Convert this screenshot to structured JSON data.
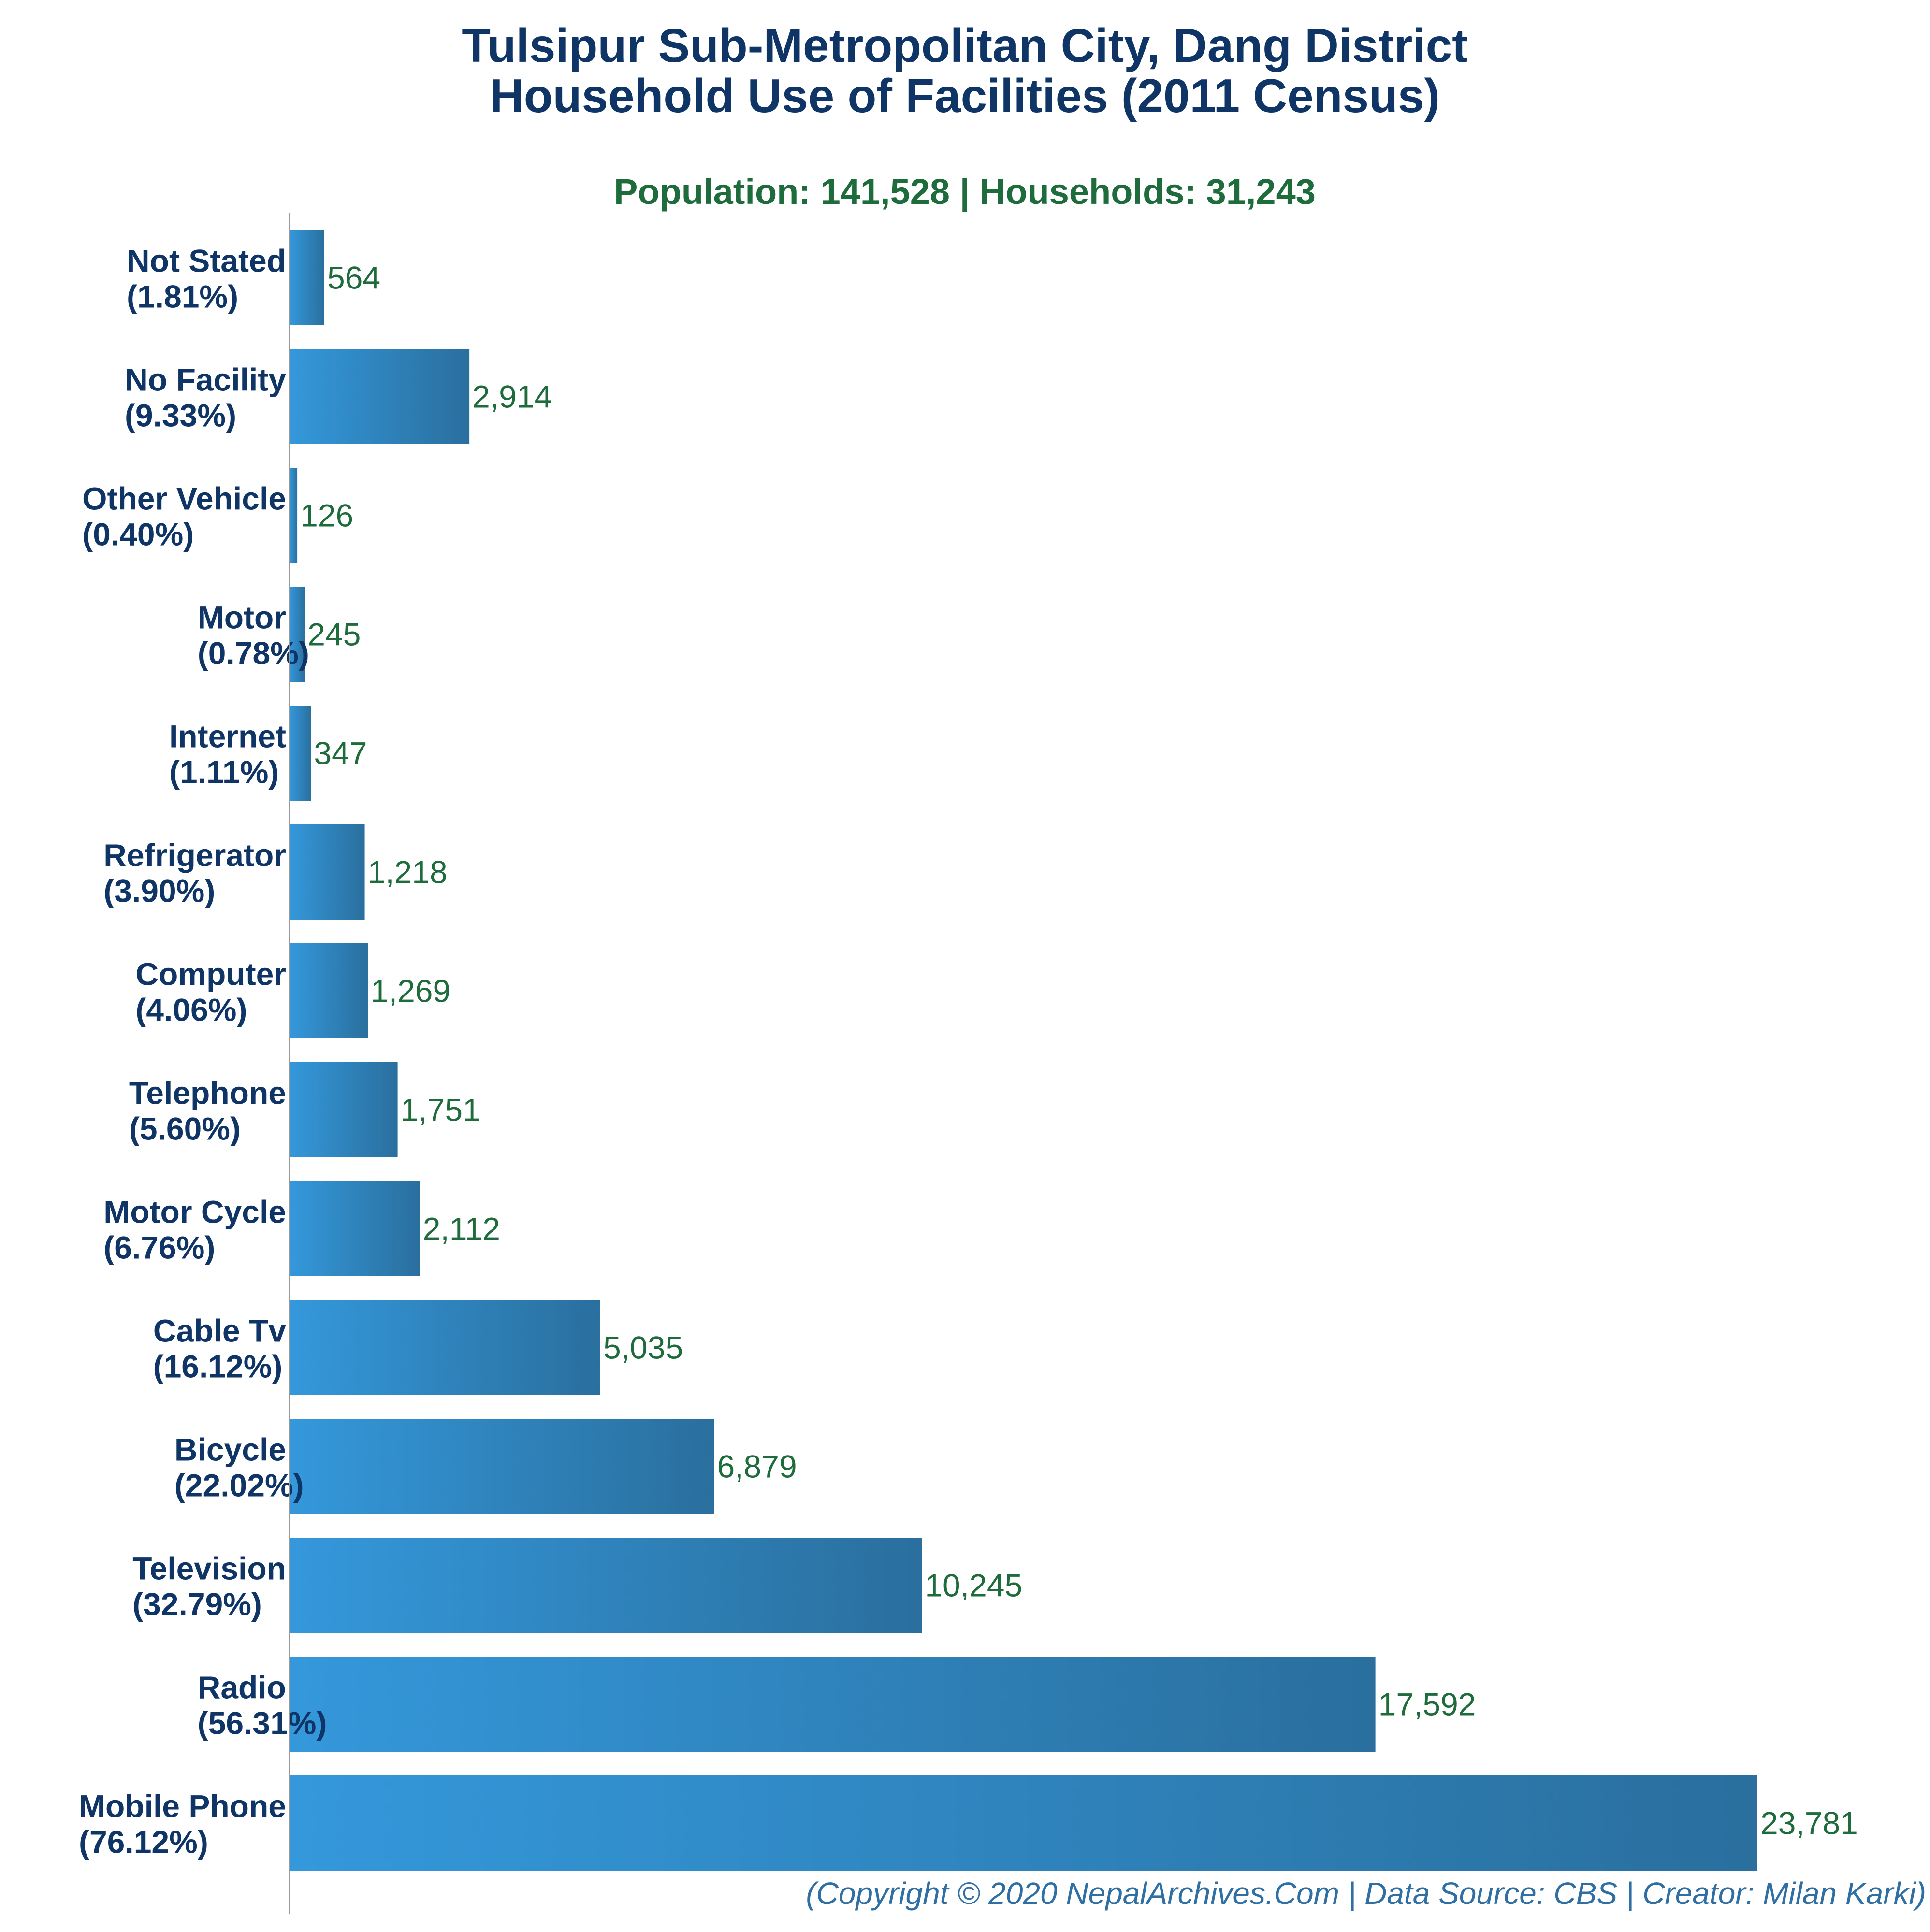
{
  "title_lines": [
    "Tulsipur Sub-Metropolitan City, Dang District",
    "Household Use of Facilities (2011 Census)"
  ],
  "subtitle": "Population: 141,528 | Households: 31,243",
  "footer": "(Copyright © 2020 NepalArchives.Com | Data Source: CBS | Creator: Milan Karki)",
  "colors": {
    "title": "#0f3566",
    "subtitle": "#1e6b3c",
    "category_label": "#0f3566",
    "value_label": "#1e6b3c",
    "bar_gradient_start": "#3498db",
    "bar_gradient_end": "#2a6f9e",
    "footer": "#2f6fa3",
    "axis": "#999999"
  },
  "chart_data": {
    "type": "bar",
    "orientation": "horizontal",
    "title": "Tulsipur Sub-Metropolitan City, Dang District Household Use of Facilities (2011 Census)",
    "subtitle": "Population: 141,528 | Households: 31,243",
    "xlabel": "",
    "ylabel": "",
    "xlim": [
      0,
      23781
    ],
    "grid": false,
    "legend": "none",
    "categories": [
      "Not Stated",
      "No Facility",
      "Other Vehicle",
      "Motor",
      "Internet",
      "Refrigerator",
      "Computer",
      "Telephone",
      "Motor Cycle",
      "Cable Tv",
      "Bicycle",
      "Television",
      "Radio",
      "Mobile Phone"
    ],
    "percent_labels": [
      "(1.81%)",
      "(9.33%)",
      "(0.40%)",
      "(0.78%)",
      "(1.11%)",
      "(3.90%)",
      "(4.06%)",
      "(5.60%)",
      "(6.76%)",
      "(16.12%)",
      "(22.02%)",
      "(32.79%)",
      "(56.31%)",
      "(76.12%)"
    ],
    "values": [
      564,
      2914,
      126,
      245,
      347,
      1218,
      1269,
      1751,
      2112,
      5035,
      6879,
      10245,
      17592,
      23781
    ],
    "value_labels": [
      "564",
      "2,914",
      "126",
      "245",
      "347",
      "1,218",
      "1,269",
      "1,751",
      "2,112",
      "5,035",
      "6,879",
      "10,245",
      "17,592",
      "23,781"
    ]
  }
}
